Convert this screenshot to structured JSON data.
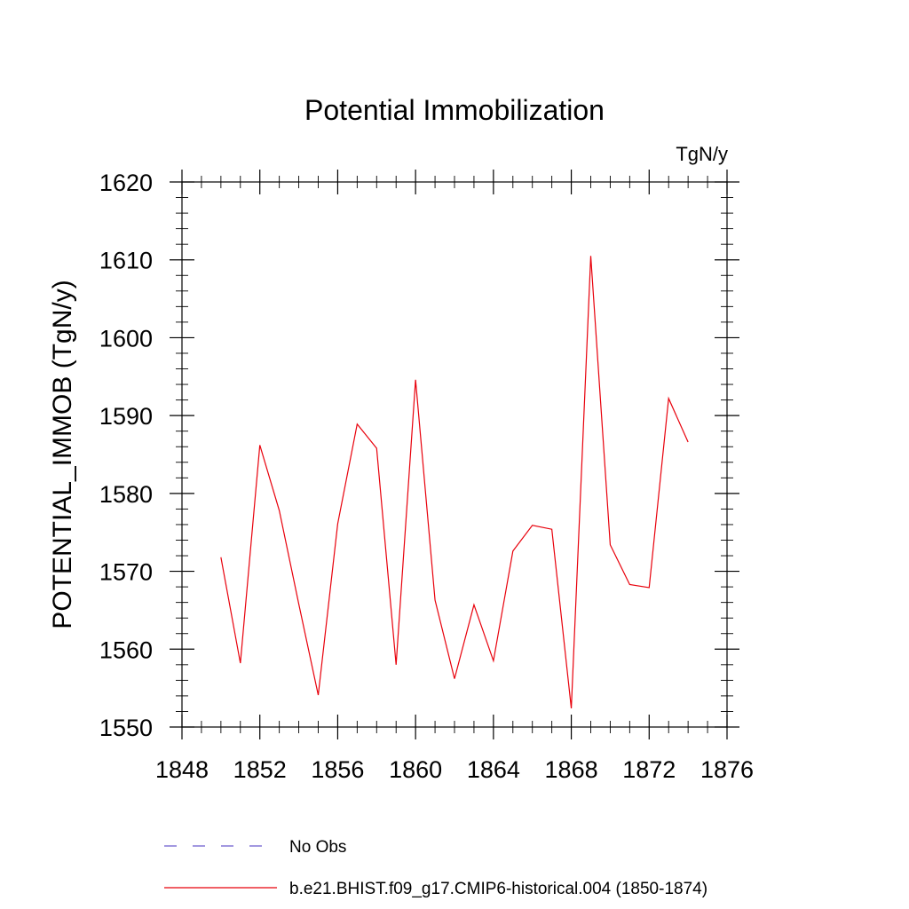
{
  "chart_data": {
    "type": "line",
    "title": "Potential Immobilization",
    "units_label": "TgN/y",
    "ylabel": "POTENTIAL_IMMOB  (TgN/y)",
    "xlabel": "",
    "xlim": [
      1848,
      1876
    ],
    "ylim": [
      1550,
      1620
    ],
    "x_major_ticks": [
      1848,
      1852,
      1856,
      1860,
      1864,
      1868,
      1872,
      1876
    ],
    "x_tick_labels": [
      "1848",
      "1852",
      "1856",
      "1860",
      "1864",
      "1868",
      "1872",
      "1876"
    ],
    "y_major_ticks": [
      1550,
      1560,
      1570,
      1580,
      1590,
      1600,
      1610,
      1620
    ],
    "y_tick_labels": [
      "1550",
      "1560",
      "1570",
      "1580",
      "1590",
      "1600",
      "1610",
      "1620"
    ],
    "grid": false,
    "legend_placement": "bottom",
    "series": [
      {
        "name": "b.e21.BHIST.f09_g17.CMIP6-historical.004 (1850-1874)",
        "color": "#e8000b",
        "style": "solid",
        "x": [
          1850,
          1851,
          1852,
          1853,
          1854,
          1855,
          1856,
          1857,
          1858,
          1859,
          1860,
          1861,
          1862,
          1863,
          1864,
          1865,
          1866,
          1867,
          1868,
          1869,
          1870,
          1871,
          1872,
          1873,
          1874
        ],
        "y": [
          1571.8,
          1558.2,
          1586.2,
          1577.8,
          1565.8,
          1554.1,
          1576.1,
          1588.9,
          1585.8,
          1558.0,
          1594.6,
          1566.3,
          1556.2,
          1565.7,
          1558.5,
          1572.6,
          1575.9,
          1575.4,
          1552.4,
          1610.5,
          1573.4,
          1568.3,
          1567.9,
          1592.2,
          1586.6
        ]
      }
    ],
    "legend": [
      {
        "label": "No Obs",
        "color": "#6a5acd",
        "style": "dashed"
      },
      {
        "label": "b.e21.BHIST.f09_g17.CMIP6-historical.004 (1850-1874)",
        "color": "#e8000b",
        "style": "solid"
      }
    ]
  }
}
